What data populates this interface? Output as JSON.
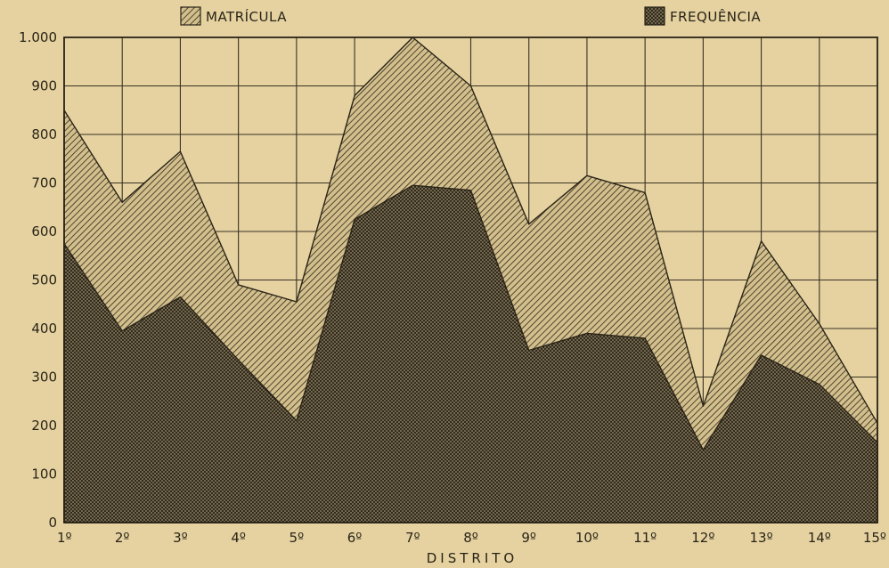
{
  "chart_data": {
    "type": "area",
    "title": "",
    "xlabel": "DISTRITO",
    "ylabel": "",
    "categories": [
      "1º",
      "2º",
      "3º",
      "4º",
      "5º",
      "6º",
      "7º",
      "8º",
      "9º",
      "10º",
      "11º",
      "12º",
      "13º",
      "14º",
      "15º"
    ],
    "y_tick_labels": [
      "0",
      "100",
      "200",
      "300",
      "400",
      "500",
      "600",
      "700",
      "800",
      "900",
      "1.000"
    ],
    "y_ticks": [
      0,
      100,
      200,
      300,
      400,
      500,
      600,
      700,
      800,
      900,
      1000
    ],
    "ylim": [
      0,
      1000
    ],
    "grid": true,
    "legend_position": "top",
    "series": [
      {
        "name": "MATRÍCULA",
        "values": [
          850,
          660,
          765,
          490,
          455,
          880,
          1000,
          900,
          615,
          715,
          680,
          240,
          580,
          410,
          205
        ],
        "pattern": "diagonal-hatch"
      },
      {
        "name": "FREQUÊNCIA",
        "values": [
          575,
          395,
          465,
          335,
          210,
          625,
          695,
          685,
          355,
          390,
          380,
          150,
          345,
          285,
          165
        ],
        "pattern": "crosshatch"
      }
    ],
    "colors": {
      "background": "#e5d2a0",
      "ink": "#2a2418",
      "grid": "#3a3224"
    }
  }
}
